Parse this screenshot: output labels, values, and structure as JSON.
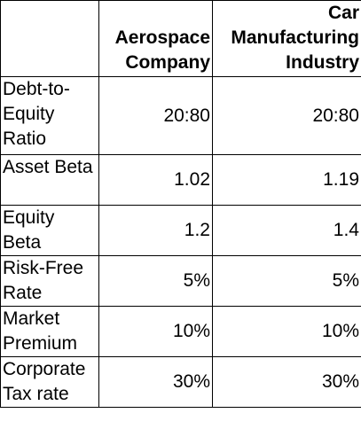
{
  "table": {
    "corner": "",
    "columns": [
      [
        "Aerospace",
        "Company"
      ],
      [
        "Car",
        "Manufacturing",
        "Industry"
      ]
    ],
    "rows": [
      {
        "label": "Debt-to-Equity Ratio",
        "values": [
          "20:80",
          "20:80"
        ]
      },
      {
        "label": "Asset Beta",
        "values": [
          "1.02",
          "1.19"
        ]
      },
      {
        "label": "Equity Beta",
        "values": [
          "1.2",
          "1.4"
        ]
      },
      {
        "label": "Risk-Free Rate",
        "values": [
          "5%",
          "5%"
        ]
      },
      {
        "label": "Market Premium",
        "values": [
          "10%",
          "10%"
        ]
      },
      {
        "label": "Corporate Tax rate",
        "values": [
          "30%",
          "30%"
        ]
      }
    ]
  }
}
